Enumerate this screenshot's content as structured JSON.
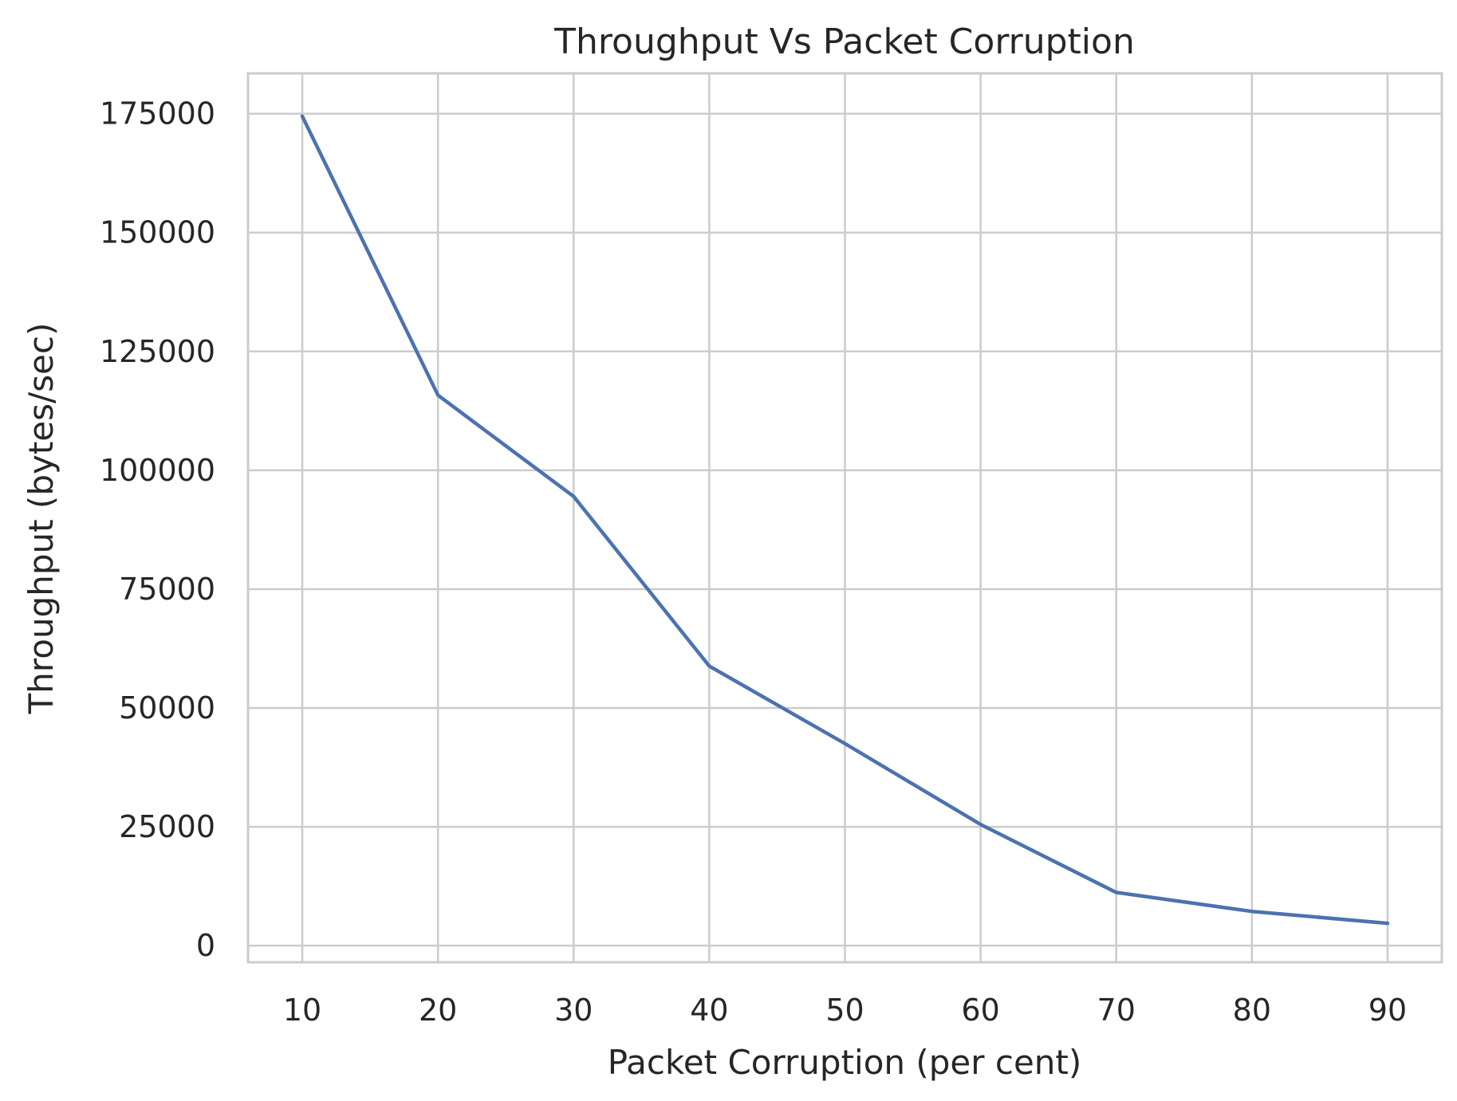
{
  "chart_data": {
    "type": "line",
    "title": "Throughput Vs Packet Corruption",
    "xlabel": "Packet Corruption (per cent)",
    "ylabel": "Throughput (bytes/sec)",
    "x": [
      10,
      20,
      30,
      40,
      50,
      60,
      70,
      80,
      90
    ],
    "series": [
      {
        "values": [
          174500,
          115800,
          94500,
          58800,
          42500,
          25500,
          11200,
          7200,
          4700
        ],
        "color": "#4c72b0"
      }
    ],
    "xlim": [
      6,
      94
    ],
    "ylim": [
      -3500,
      183500
    ],
    "xticks": [
      10,
      20,
      30,
      40,
      50,
      60,
      70,
      80,
      90
    ],
    "yticks": [
      0,
      25000,
      50000,
      75000,
      100000,
      125000,
      150000,
      175000
    ],
    "grid": true,
    "legend": "none"
  }
}
